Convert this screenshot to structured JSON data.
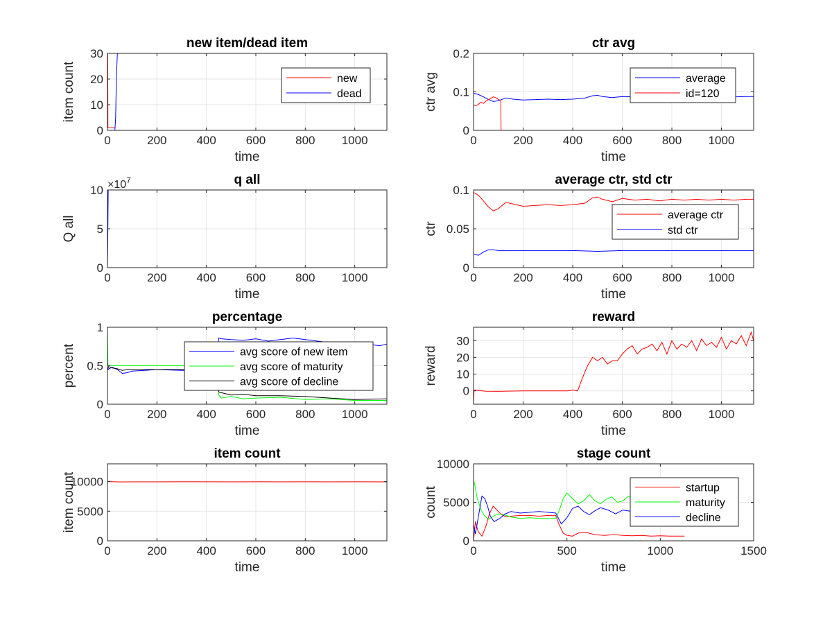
{
  "chart_data": [
    {
      "id": "p1",
      "type": "line",
      "title": "new item/dead item",
      "xlabel": "time",
      "ylabel": "item count",
      "xlim": [
        0,
        1130
      ],
      "ylim": [
        0,
        30
      ],
      "xticks": [
        0,
        200,
        400,
        600,
        800,
        1000
      ],
      "yticks": [
        0,
        10,
        20,
        30
      ],
      "grid": true,
      "legend": "top-right",
      "series": [
        {
          "name": "new",
          "color": "#ff0000",
          "x": [
            0,
            1,
            2,
            3,
            4,
            5,
            6,
            7,
            8,
            9,
            10,
            12,
            15,
            20,
            25,
            30
          ],
          "y": [
            30,
            30,
            1,
            1,
            1,
            1,
            1,
            1,
            1,
            1,
            1,
            1,
            1,
            1,
            1,
            1
          ]
        },
        {
          "name": "dead",
          "color": "#0000ff",
          "x": [
            0,
            5,
            10,
            15,
            20,
            25,
            30,
            33,
            36,
            40
          ],
          "y": [
            0,
            0,
            0,
            0,
            0,
            0,
            0,
            5,
            20,
            30
          ]
        }
      ]
    },
    {
      "id": "p2",
      "type": "line",
      "title": "ctr avg",
      "xlabel": "time",
      "ylabel": "ctr avg",
      "xlim": [
        0,
        1130
      ],
      "ylim": [
        0,
        0.2
      ],
      "xticks": [
        0,
        200,
        400,
        600,
        800,
        1000
      ],
      "yticks": [
        0,
        0.1,
        0.2
      ],
      "grid": true,
      "legend": "top-right",
      "series": [
        {
          "name": "average",
          "color": "#0000ff",
          "x": [
            0,
            20,
            40,
            60,
            80,
            100,
            130,
            160,
            200,
            250,
            300,
            350,
            400,
            450,
            480,
            500,
            520,
            560,
            600,
            650,
            700,
            750,
            800,
            850,
            900,
            950,
            1000,
            1050,
            1100,
            1130
          ],
          "y": [
            0.097,
            0.093,
            0.087,
            0.08,
            0.075,
            0.077,
            0.084,
            0.081,
            0.079,
            0.08,
            0.081,
            0.08,
            0.081,
            0.084,
            0.09,
            0.091,
            0.088,
            0.085,
            0.088,
            0.087,
            0.087,
            0.086,
            0.088,
            0.087,
            0.088,
            0.087,
            0.088,
            0.087,
            0.088,
            0.088
          ]
        },
        {
          "name": "id=120",
          "color": "#ff0000",
          "x": [
            0,
            10,
            20,
            30,
            40,
            50,
            60,
            70,
            80,
            90,
            100,
            110,
            111,
            200,
            400,
            600,
            800,
            1000,
            1130
          ],
          "y": [
            0.066,
            0.064,
            0.068,
            0.073,
            0.07,
            0.076,
            0.08,
            0.083,
            0.087,
            0.085,
            0.08,
            0.078,
            0,
            0,
            0,
            0,
            0,
            0,
            0
          ]
        }
      ]
    },
    {
      "id": "p3",
      "type": "line",
      "title": "q all",
      "xlabel": "time",
      "ylabel": "Q all",
      "xlim": [
        0,
        1130
      ],
      "ylim": [
        0,
        100000000
      ],
      "xticks": [
        0,
        200,
        400,
        600,
        800,
        1000
      ],
      "yticks": [
        0,
        50000000,
        100000000
      ],
      "ytick_labels": [
        "0",
        "5",
        "10"
      ],
      "exponent_label": "×10",
      "exponent": "7",
      "grid": true,
      "series": [
        {
          "color": "#0000ff",
          "x": [
            0,
            1,
            3,
            6,
            200,
            400,
            600,
            800,
            1000,
            1130
          ],
          "y": [
            0,
            30000000,
            100000000,
            100000000,
            100000000,
            100000000,
            100000000,
            100000000,
            100000000,
            100000000
          ]
        }
      ]
    },
    {
      "id": "p4",
      "type": "line",
      "title": "average ctr, std ctr",
      "xlabel": "time",
      "ylabel": "ctr",
      "xlim": [
        0,
        1130
      ],
      "ylim": [
        0,
        0.1
      ],
      "xticks": [
        0,
        200,
        400,
        600,
        800,
        1000
      ],
      "yticks": [
        0,
        0.05,
        0.1
      ],
      "ytick_labels": [
        "0",
        "0.05",
        "0.1"
      ],
      "grid": true,
      "legend": "top-right",
      "series": [
        {
          "name": "average ctr",
          "color": "#ff0000",
          "x": [
            0,
            20,
            40,
            60,
            80,
            100,
            130,
            160,
            200,
            250,
            300,
            350,
            400,
            450,
            480,
            500,
            520,
            560,
            600,
            650,
            700,
            750,
            800,
            850,
            900,
            950,
            1000,
            1050,
            1100,
            1130
          ],
          "y": [
            0.097,
            0.093,
            0.086,
            0.078,
            0.073,
            0.076,
            0.084,
            0.082,
            0.079,
            0.08,
            0.081,
            0.08,
            0.081,
            0.083,
            0.09,
            0.091,
            0.088,
            0.085,
            0.089,
            0.087,
            0.088,
            0.086,
            0.088,
            0.087,
            0.088,
            0.087,
            0.088,
            0.087,
            0.088,
            0.088
          ]
        },
        {
          "name": "std ctr",
          "color": "#0000ff",
          "x": [
            0,
            20,
            40,
            60,
            80,
            100,
            150,
            200,
            300,
            400,
            500,
            600,
            700,
            800,
            900,
            1000,
            1130
          ],
          "y": [
            0.017,
            0.016,
            0.02,
            0.023,
            0.023,
            0.022,
            0.022,
            0.022,
            0.022,
            0.022,
            0.021,
            0.022,
            0.022,
            0.022,
            0.022,
            0.022,
            0.022
          ]
        }
      ]
    },
    {
      "id": "p5",
      "type": "line",
      "title": "percentage",
      "xlabel": "time",
      "ylabel": "percent",
      "xlim": [
        0,
        1130
      ],
      "ylim": [
        0,
        1
      ],
      "xticks": [
        0,
        200,
        400,
        600,
        800,
        1000
      ],
      "yticks": [
        0,
        0.5,
        1
      ],
      "grid": true,
      "legend": "top-right",
      "series": [
        {
          "name": "avg score of new item",
          "color": "#0000ff",
          "x": [
            0,
            5,
            20,
            40,
            60,
            80,
            100,
            150,
            200,
            300,
            400,
            440,
            450,
            460,
            500,
            550,
            600,
            650,
            700,
            750,
            800,
            850,
            900,
            950,
            1000,
            1050,
            1100,
            1130
          ],
          "y": [
            0.44,
            0.46,
            0.48,
            0.45,
            0.4,
            0.41,
            0.43,
            0.44,
            0.45,
            0.44,
            0.44,
            0.44,
            0.86,
            0.85,
            0.84,
            0.83,
            0.85,
            0.82,
            0.84,
            0.86,
            0.84,
            0.82,
            0.8,
            0.8,
            0.78,
            0.78,
            0.76,
            0.78
          ]
        },
        {
          "name": "avg score of maturity",
          "color": "#00ff00",
          "x": [
            0,
            2,
            20,
            50,
            100,
            200,
            300,
            400,
            440,
            450,
            460,
            500,
            550,
            600,
            700,
            800,
            900,
            1000,
            1130
          ],
          "y": [
            0.95,
            0.5,
            0.5,
            0.5,
            0.5,
            0.5,
            0.5,
            0.5,
            0.5,
            0.12,
            0.08,
            0.1,
            0.07,
            0.08,
            0.09,
            0.06,
            0.07,
            0.05,
            0.05
          ]
        },
        {
          "name": "avg score of decline",
          "color": "#000000",
          "x": [
            0,
            5,
            20,
            40,
            60,
            80,
            100,
            150,
            200,
            300,
            400,
            440,
            450,
            460,
            500,
            550,
            600,
            700,
            800,
            900,
            1000,
            1130
          ],
          "y": [
            0.45,
            0.49,
            0.47,
            0.46,
            0.44,
            0.45,
            0.45,
            0.45,
            0.45,
            0.45,
            0.45,
            0.45,
            0.16,
            0.15,
            0.12,
            0.13,
            0.11,
            0.11,
            0.1,
            0.08,
            0.06,
            0.07
          ]
        }
      ]
    },
    {
      "id": "p6",
      "type": "line",
      "title": "reward",
      "xlabel": "time",
      "ylabel": "reward",
      "xlim": [
        0,
        1130
      ],
      "ylim": [
        -8,
        38
      ],
      "xticks": [
        0,
        200,
        400,
        600,
        800,
        1000
      ],
      "yticks": [
        0,
        10,
        20,
        30
      ],
      "grid": true,
      "series": [
        {
          "color": "#ff0000",
          "x": [
            0,
            2,
            5,
            20,
            50,
            100,
            200,
            300,
            380,
            400,
            420,
            440,
            460,
            480,
            500,
            520,
            540,
            560,
            580,
            600,
            620,
            640,
            660,
            680,
            700,
            720,
            740,
            760,
            780,
            800,
            820,
            840,
            860,
            880,
            900,
            920,
            940,
            960,
            980,
            1000,
            1020,
            1040,
            1060,
            1080,
            1100,
            1120,
            1130
          ],
          "y": [
            -8,
            0,
            0.5,
            0.2,
            -0.2,
            -0.3,
            0,
            0,
            0,
            0.5,
            0,
            8,
            15,
            20,
            18,
            20,
            16,
            18,
            18,
            22,
            25,
            27,
            22,
            25,
            26,
            28,
            24,
            29,
            22,
            30,
            25,
            28,
            26,
            30,
            24,
            31,
            27,
            29,
            26,
            32,
            25,
            30,
            28,
            33,
            27,
            35,
            30
          ]
        }
      ]
    },
    {
      "id": "p7",
      "type": "line",
      "title": "item count",
      "xlabel": "time",
      "ylabel": "item count",
      "xlim": [
        0,
        1130
      ],
      "ylim": [
        0,
        13000
      ],
      "xticks": [
        0,
        200,
        400,
        600,
        800,
        1000
      ],
      "yticks": [
        0,
        5000,
        10000
      ],
      "grid": true,
      "series": [
        {
          "color": "#ff0000",
          "x": [
            0,
            20,
            50,
            100,
            200,
            300,
            400,
            500,
            600,
            700,
            800,
            900,
            1000,
            1130
          ],
          "y": [
            10000,
            9990,
            9940,
            9950,
            9960,
            9970,
            9970,
            9960,
            9970,
            9960,
            9970,
            9960,
            9970,
            9960
          ]
        }
      ]
    },
    {
      "id": "p8",
      "type": "line",
      "title": "stage count",
      "xlabel": "time",
      "ylabel": "count",
      "xlim": [
        0,
        1500
      ],
      "ylim": [
        0,
        10000
      ],
      "xticks": [
        0,
        500,
        1000,
        1500
      ],
      "yticks": [
        0,
        5000,
        10000
      ],
      "grid": true,
      "legend": "top-right",
      "series": [
        {
          "name": "startup",
          "color": "#ff0000",
          "x": [
            0,
            10,
            25,
            45,
            65,
            85,
            105,
            125,
            150,
            175,
            200,
            250,
            300,
            350,
            400,
            440,
            460,
            480,
            500,
            530,
            560,
            600,
            650,
            700,
            750,
            800,
            850,
            900,
            950,
            1000,
            1050,
            1100,
            1130
          ],
          "y": [
            0,
            2500,
            1200,
            600,
            1800,
            3500,
            4500,
            4000,
            3400,
            3100,
            3200,
            3300,
            3300,
            3200,
            3300,
            3300,
            2000,
            1000,
            700,
            600,
            1000,
            1100,
            800,
            700,
            800,
            700,
            650,
            700,
            600,
            650,
            600,
            600,
            600
          ]
        },
        {
          "name": "maturity",
          "color": "#00ff00",
          "x": [
            0,
            5,
            20,
            40,
            60,
            80,
            100,
            130,
            160,
            200,
            250,
            300,
            350,
            400,
            440,
            460,
            480,
            500,
            530,
            560,
            590,
            620,
            650,
            680,
            710,
            740,
            770,
            800,
            830,
            850
          ],
          "y": [
            7800,
            7500,
            5500,
            4000,
            3200,
            2800,
            3100,
            3500,
            3400,
            3100,
            2900,
            3000,
            2900,
            2900,
            2900,
            4000,
            5500,
            6200,
            5500,
            4800,
            5200,
            6000,
            5200,
            4800,
            5400,
            5700,
            5000,
            5200,
            5800,
            5500
          ]
        },
        {
          "name": "decline",
          "color": "#0000ff",
          "x": [
            0,
            10,
            25,
            45,
            60,
            75,
            90,
            110,
            140,
            170,
            200,
            250,
            300,
            350,
            400,
            440,
            470,
            500,
            530,
            560,
            590,
            620,
            650,
            680,
            720,
            760,
            800,
            850
          ],
          "y": [
            2100,
            900,
            3000,
            5800,
            5500,
            4500,
            3200,
            2500,
            2900,
            3500,
            3800,
            3600,
            3700,
            3800,
            3700,
            3600,
            2200,
            3000,
            4200,
            4500,
            3800,
            3400,
            3900,
            4300,
            4000,
            3500,
            4000,
            3800
          ]
        }
      ]
    }
  ]
}
